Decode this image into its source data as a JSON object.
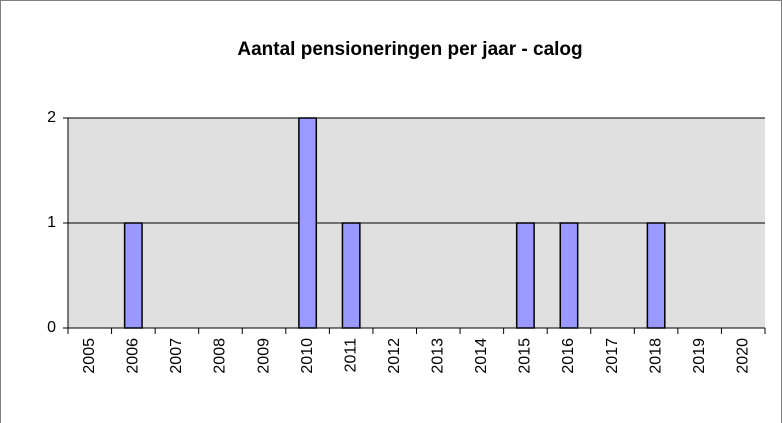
{
  "chart_data": {
    "type": "bar",
    "title": "Aantal pensioneringen per jaar - calog",
    "categories": [
      "2005",
      "2006",
      "2007",
      "2008",
      "2009",
      "2010",
      "2011",
      "2012",
      "2013",
      "2014",
      "2015",
      "2016",
      "2017",
      "2018",
      "2019",
      "2020"
    ],
    "values": [
      0,
      1,
      0,
      0,
      0,
      2,
      1,
      0,
      0,
      0,
      1,
      1,
      0,
      1,
      0,
      0
    ],
    "color": "#9999ff",
    "ylim": [
      0,
      2
    ],
    "yticks": [
      0,
      1,
      2
    ],
    "grid": true
  }
}
